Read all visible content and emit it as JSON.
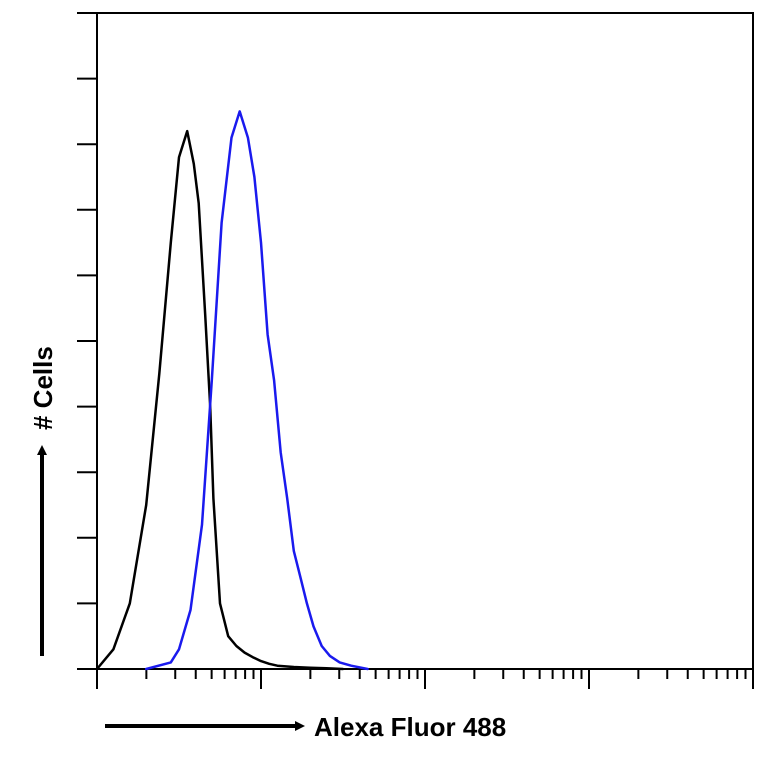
{
  "chart_data": {
    "type": "line",
    "title": "",
    "xlabel": "Alexa Fluor 488",
    "ylabel": "# Cells",
    "x_scale": "log",
    "xlim": [
      0,
      4
    ],
    "ylim": [
      0,
      10
    ],
    "grid": false,
    "series": [
      {
        "color": "#000000",
        "x": [
          0,
          0.1,
          0.2,
          0.3,
          0.38,
          0.45,
          0.5,
          0.55,
          0.59,
          0.62,
          0.66,
          0.69,
          0.71,
          0.75,
          0.8,
          0.85,
          0.9,
          0.95,
          1.0,
          1.05,
          1.1,
          1.2,
          1.3,
          1.4,
          1.5
        ],
        "y": [
          0,
          0.3,
          1.0,
          2.5,
          4.5,
          6.5,
          7.8,
          8.2,
          7.7,
          7.1,
          5.4,
          4.0,
          2.6,
          1.0,
          0.5,
          0.35,
          0.25,
          0.18,
          0.12,
          0.08,
          0.05,
          0.03,
          0.02,
          0.01,
          0
        ]
      },
      {
        "color": "#1a1aee",
        "x": [
          0.3,
          0.45,
          0.5,
          0.57,
          0.64,
          0.7,
          0.76,
          0.82,
          0.87,
          0.92,
          0.96,
          1.0,
          1.04,
          1.08,
          1.12,
          1.16,
          1.2,
          1.24,
          1.28,
          1.32,
          1.37,
          1.42,
          1.48,
          1.55,
          1.65
        ],
        "y": [
          0,
          0.1,
          0.3,
          0.9,
          2.2,
          4.4,
          6.8,
          8.1,
          8.5,
          8.1,
          7.5,
          6.5,
          5.1,
          4.4,
          3.3,
          2.6,
          1.8,
          1.4,
          1.0,
          0.65,
          0.35,
          0.2,
          0.1,
          0.05,
          0
        ]
      }
    ]
  }
}
